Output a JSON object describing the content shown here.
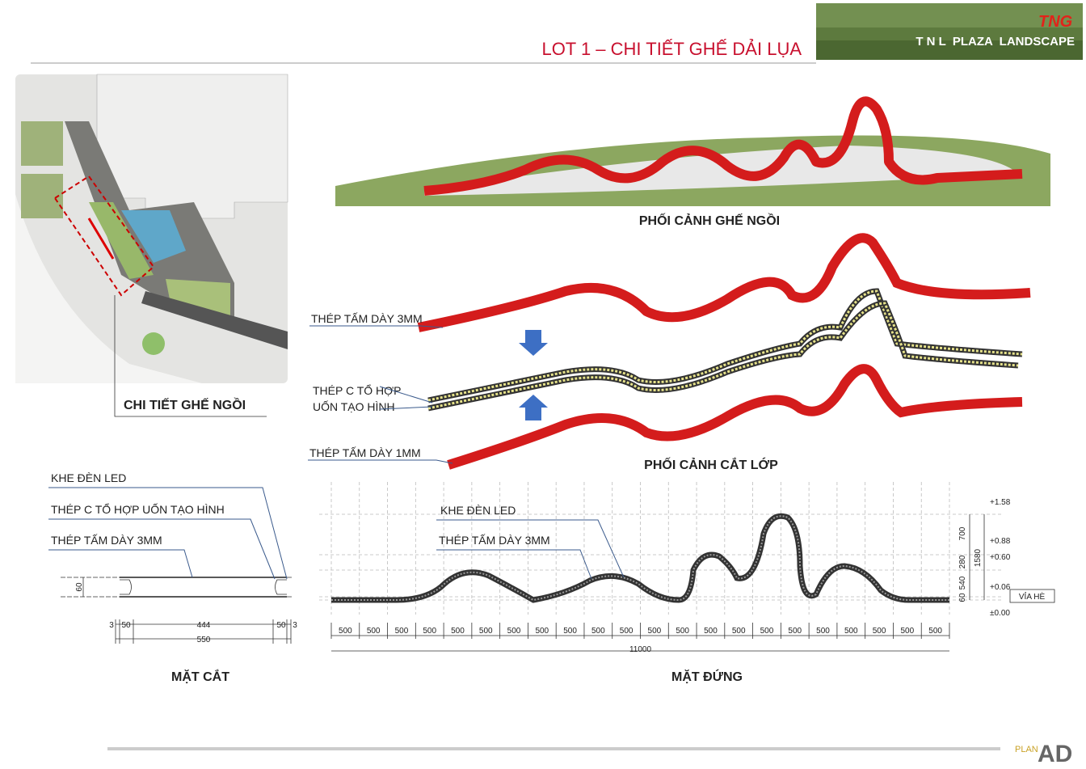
{
  "header": {
    "title": "LOT 1 – CHI TIẾT GHẾ DẢI LỤA",
    "brand": "TNG",
    "project": "T N L  PLAZA  LANDSCAPE"
  },
  "site_plan": {
    "label": "CHI TIẾT GHẾ NGỒI"
  },
  "perspective": {
    "caption": "PHỐI CẢNH GHẾ NGỒI"
  },
  "layers": {
    "top_label": "THÉP TẤM DÀY 3MM",
    "middle_label": [
      "THÉP C TỔ HỢP",
      "UỐN TẠO HÌNH"
    ],
    "bottom_label": "THÉP TẤM DÀY 1MM",
    "caption": "PHỐI CẢNH CẮT LỚP"
  },
  "section": {
    "labels": [
      "KHE ĐÈN LED",
      "THÉP C TỔ HỢP UỐN TẠO HÌNH",
      "THÉP TẤM DÀY 3MM"
    ],
    "height": 60,
    "widths": [
      3,
      50,
      444,
      50,
      3
    ],
    "total": 550,
    "caption": "MẶT CẮT"
  },
  "elevation": {
    "labels": [
      "KHE ĐÈN LED",
      "THÉP TẤM DÀY 3MM"
    ],
    "modules": [
      500,
      500,
      500,
      500,
      500,
      500,
      500,
      500,
      500,
      500,
      500,
      500,
      500,
      500,
      500,
      500,
      500,
      500,
      500,
      500,
      500,
      500
    ],
    "total": 11000,
    "heights": [
      700,
      280,
      540,
      60
    ],
    "total_height": 1580,
    "levels": [
      "+1.58",
      "+0.88",
      "+0.60",
      "+0.06",
      "±0.00"
    ],
    "sidewalk": "VỈA HÈ",
    "caption": "MẶT ĐỨNG"
  },
  "footer": {
    "brand_text": "PLAN",
    "logo": "AD"
  }
}
